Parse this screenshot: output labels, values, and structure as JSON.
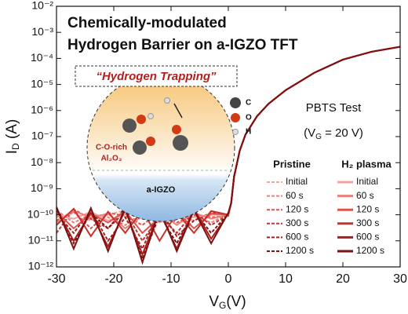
{
  "chart_data": {
    "type": "line",
    "log_y": true,
    "title_lines": [
      "Chemically-modulated",
      "Hydrogen Barrier on a-IGZO TFT"
    ],
    "annotation": "“Hydrogen Trapping”",
    "test_label": "PBTS Test",
    "condition_parts": [
      "(V",
      "G",
      " = 20 V)"
    ],
    "xlabel_parts": [
      "V",
      "G",
      "(V)"
    ],
    "ylabel_parts": [
      "I",
      "D",
      " (A)"
    ],
    "inset_labels": {
      "c": "C",
      "o": "O",
      "h": "H",
      "oxide_top": "C-O-rich",
      "oxide_bottom": "Al₂O₃",
      "channel": "a-IGZO"
    },
    "legend_titles": [
      "Pristine",
      "H₂ plasma"
    ],
    "x": [
      -30,
      -27,
      -24,
      -21,
      -18,
      -15,
      -12,
      -9,
      -6,
      -3,
      0,
      0.5,
      1,
      2,
      3,
      5,
      7,
      10,
      15,
      20,
      25,
      30
    ],
    "xlim": [
      -30,
      30
    ],
    "xticks": [
      -30,
      -20,
      -10,
      0,
      10,
      20,
      30
    ],
    "ylim": [
      1e-12,
      0.01
    ],
    "yticks": [
      {
        "value": 1e-12,
        "label": "10⁻¹²"
      },
      {
        "value": 1e-11,
        "label": "10⁻¹¹"
      },
      {
        "value": 1e-10,
        "label": "10⁻¹⁰"
      },
      {
        "value": 1e-09,
        "label": "10⁻⁹"
      },
      {
        "value": 1e-08,
        "label": "10⁻⁸"
      },
      {
        "value": 1e-07,
        "label": "10⁻⁷"
      },
      {
        "value": 1e-06,
        "label": "10⁻⁶"
      },
      {
        "value": 1e-05,
        "label": "10⁻⁵"
      },
      {
        "value": 0.0001,
        "label": "10⁻⁴"
      },
      {
        "value": 0.001,
        "label": "10⁻³"
      },
      {
        "value": 0.01,
        "label": "10⁻²"
      }
    ],
    "series": [
      {
        "name": "Initial",
        "color": "#f4a39c",
        "dashed": true,
        "values": [
          8e-11,
          1.2e-10,
          6e-11,
          1e-10,
          1.5e-10,
          7e-11,
          1.1e-10,
          9e-11,
          6e-11,
          1.2e-10,
          1e-10,
          3e-10,
          3e-09,
          3e-08,
          1.2e-07,
          6e-07,
          1.8e-06,
          6e-06,
          2.8e-05,
          9e-05,
          0.00018,
          0.00028
        ]
      },
      {
        "name": "60 s",
        "color": "#ec7f77",
        "dashed": true,
        "values": [
          1.5e-10,
          5e-11,
          1e-10,
          8e-11,
          4e-11,
          1.2e-10,
          7e-11,
          1e-10,
          9e-11,
          5e-11,
          1.1e-10,
          3e-10,
          3e-09,
          3e-08,
          1.2e-07,
          6e-07,
          1.8e-06,
          6e-06,
          2.8e-05,
          9e-05,
          0.00018,
          0.00028
        ]
      },
      {
        "name": "120 s",
        "color": "#df524b",
        "dashed": true,
        "values": [
          6e-11,
          1.3e-10,
          3e-11,
          1.2e-10,
          9e-11,
          4e-11,
          1.4e-10,
          5e-11,
          1e-10,
          8e-11,
          9e-11,
          3e-10,
          3e-09,
          3e-08,
          1.2e-07,
          6e-07,
          1.8e-06,
          6e-06,
          2.8e-05,
          9e-05,
          0.00018,
          0.00028
        ]
      },
      {
        "name": "300 s",
        "color": "#c7322f",
        "dashed": true,
        "values": [
          2e-11,
          1.6e-10,
          7e-11,
          3e-11,
          1.3e-10,
          1e-11,
          9e-11,
          2e-11,
          1.3e-10,
          4e-11,
          1e-10,
          3e-10,
          3e-09,
          3e-08,
          1.2e-07,
          6e-07,
          1.8e-06,
          6e-06,
          2.8e-05,
          9e-05,
          0.00018,
          0.00028
        ]
      },
      {
        "name": "600 s",
        "color": "#a61f1f",
        "dashed": true,
        "values": [
          1.1e-10,
          2e-11,
          1.5e-10,
          1e-11,
          8e-11,
          5e-12,
          1.6e-10,
          1.5e-11,
          6e-11,
          1.2e-10,
          1e-10,
          3e-10,
          3e-09,
          3e-08,
          1.2e-07,
          6e-07,
          1.8e-06,
          6e-06,
          2.8e-05,
          9e-05,
          0.00018,
          0.00028
        ]
      },
      {
        "name": "1200 s",
        "color": "#7c1111",
        "dashed": true,
        "values": [
          1.8e-10,
          8e-12,
          1.2e-10,
          3e-11,
          1.8e-10,
          2e-12,
          1e-10,
          8e-12,
          1.4e-10,
          2e-11,
          1.1e-10,
          3e-10,
          3e-09,
          3e-08,
          1.2e-07,
          6e-07,
          1.8e-06,
          6e-06,
          2.8e-05,
          9e-05,
          0.00018,
          0.00028
        ]
      },
      {
        "name": "Initial",
        "color": "#f4a39c",
        "dashed": false,
        "values": [
          1e-10,
          7e-11,
          1.3e-10,
          6e-11,
          1e-10,
          1.2e-10,
          5e-11,
          1.1e-10,
          8e-11,
          1e-10,
          1e-10,
          2.8e-10,
          2.8e-09,
          2.9e-08,
          1.2e-07,
          6e-07,
          1.8e-06,
          6e-06,
          2.8e-05,
          9e-05,
          0.00018,
          0.00028
        ]
      },
      {
        "name": "60 s",
        "color": "#ec7f77",
        "dashed": false,
        "values": [
          5e-11,
          1.4e-10,
          8e-11,
          1.1e-10,
          3e-11,
          9e-11,
          1.3e-10,
          4e-11,
          1.2e-10,
          7e-11,
          1e-10,
          2.8e-10,
          2.8e-09,
          2.9e-08,
          1.2e-07,
          6e-07,
          1.8e-06,
          6e-06,
          2.8e-05,
          9e-05,
          0.00018,
          0.00028
        ]
      },
      {
        "name": "120 s",
        "color": "#df524b",
        "dashed": false,
        "values": [
          1.3e-10,
          3e-11,
          1.1e-10,
          5e-11,
          1.4e-10,
          2e-11,
          8e-11,
          1.3e-10,
          3e-11,
          1.1e-10,
          1e-10,
          2.8e-10,
          2.8e-09,
          2.9e-08,
          1.2e-07,
          6e-07,
          1.8e-06,
          6e-06,
          2.8e-05,
          9e-05,
          0.00018,
          0.00028
        ]
      },
      {
        "name": "300 s",
        "color": "#c7322f",
        "dashed": false,
        "values": [
          4e-11,
          1.7e-10,
          1.5e-11,
          1.3e-10,
          2e-11,
          1.5e-10,
          1e-11,
          1.2e-10,
          2e-11,
          1.4e-10,
          1e-10,
          2.8e-10,
          2.8e-09,
          2.9e-08,
          1.2e-07,
          6e-07,
          1.8e-06,
          6e-06,
          2.8e-05,
          9e-05,
          0.00018,
          0.00028
        ]
      },
      {
        "name": "600 s",
        "color": "#a61f1f",
        "dashed": false,
        "values": [
          1.6e-10,
          1e-11,
          1.2e-10,
          6e-12,
          1.5e-10,
          3e-12,
          1.3e-10,
          5e-12,
          1.7e-10,
          1.2e-11,
          1.1e-10,
          2.8e-10,
          2.8e-09,
          2.9e-08,
          1.2e-07,
          6e-07,
          1.8e-06,
          6e-06,
          2.8e-05,
          9e-05,
          0.00018,
          0.00028
        ]
      },
      {
        "name": "1200 s",
        "color": "#7c1111",
        "dashed": false,
        "values": [
          2e-10,
          5e-12,
          1.8e-10,
          4e-12,
          2e-10,
          1.5e-12,
          1.6e-10,
          4e-12,
          1.5e-10,
          8e-12,
          1.2e-10,
          2.8e-10,
          2.8e-09,
          2.9e-08,
          1.2e-07,
          6e-07,
          1.8e-06,
          6e-06,
          2.8e-05,
          9e-05,
          0.00018,
          0.00028
        ]
      }
    ]
  }
}
